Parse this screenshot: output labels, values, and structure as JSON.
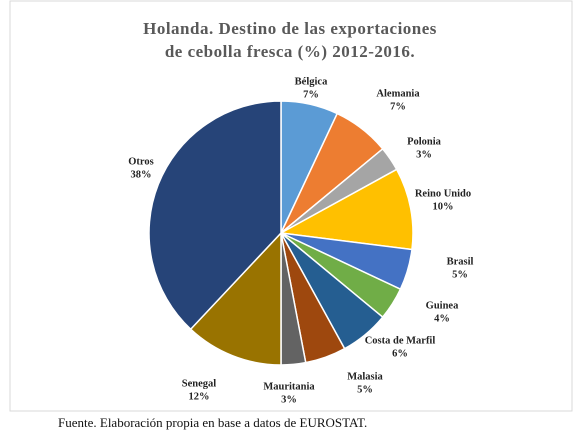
{
  "chart_data": {
    "type": "pie",
    "title": [
      "Holanda. Destino de las exportaciones",
      "de cebolla fresca (%) 2012-2016."
    ],
    "categories": [
      "Bélgica",
      "Alemania",
      "Polonia",
      "Reino Unido",
      "Brasil",
      "Guinea",
      "Costa de Marfil",
      "Malasia",
      "Mauritania",
      "Senegal",
      "Otros"
    ],
    "values": [
      7,
      7,
      3,
      10,
      5,
      4,
      6,
      5,
      3,
      12,
      38
    ],
    "value_labels": [
      "7%",
      "7%",
      "3%",
      "10%",
      "5%",
      "4%",
      "6%",
      "5%",
      "3%",
      "12%",
      "38%"
    ],
    "colors": [
      "#5b9bd5",
      "#ed7d31",
      "#a5a5a5",
      "#ffc000",
      "#4472c4",
      "#70ad47",
      "#255e91",
      "#9e480e",
      "#636363",
      "#997300",
      "#264478"
    ]
  },
  "source": "Fuente. Elaboración propia en base a datos de EUROSTAT."
}
